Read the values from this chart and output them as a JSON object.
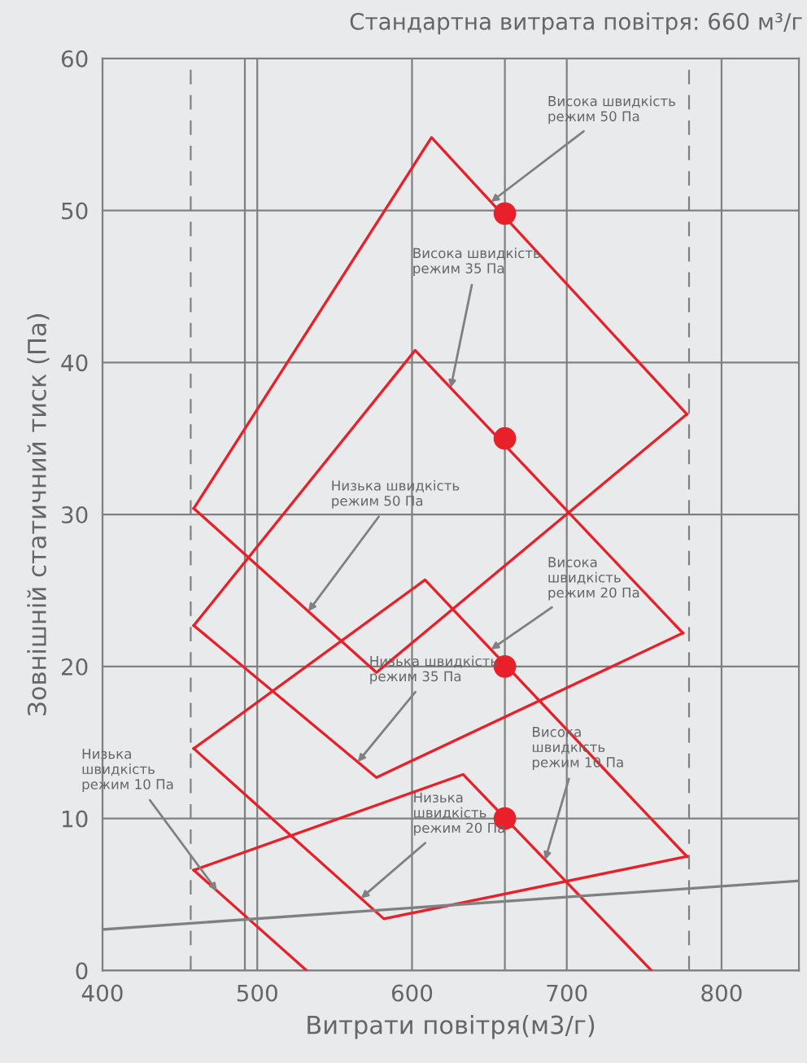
{
  "chart_data": {
    "type": "line",
    "title": "Стандартна витрата повітря: 660 м³/г",
    "xlabel": "Витрати повітря(м3/г)",
    "ylabel": "Зовнішній статичний тиск (Па)",
    "xlim": [
      400,
      850
    ],
    "ylim": [
      0,
      60
    ],
    "xticks": [
      400,
      500,
      600,
      700,
      800
    ],
    "yticks": [
      0,
      10,
      20,
      30,
      40,
      50,
      60
    ],
    "grid": true,
    "legend": false,
    "marker": "none",
    "line_style": "solid",
    "series": [
      {
        "color": "#e8202a",
        "x": [
          459,
          612.6,
          777.6
        ],
        "values": [
          30.4,
          54.8,
          36.6
        ]
      },
      {
        "color": "#e8202a",
        "x": [
          459,
          577,
          777.6
        ],
        "values": [
          30.4,
          19.6,
          36.6
        ]
      },
      {
        "color": "#e8202a",
        "x": [
          459,
          602,
          775
        ],
        "values": [
          22.7,
          40.8,
          22.2
        ]
      },
      {
        "color": "#e8202a",
        "x": [
          459,
          577,
          775
        ],
        "values": [
          22.7,
          12.7,
          22.2
        ]
      },
      {
        "color": "#e8202a",
        "x": [
          459,
          608.4,
          777.6
        ],
        "values": [
          14.6,
          25.7,
          7.5
        ]
      },
      {
        "color": "#e8202a",
        "x": [
          459,
          581.8,
          777.6
        ],
        "values": [
          14.6,
          3.4,
          7.5
        ]
      },
      {
        "color": "#e8202a",
        "x": [
          459,
          531.9
        ],
        "values": [
          6.6,
          0
        ]
      },
      {
        "color": "#e8202a",
        "x": [
          459,
          633,
          754.7
        ],
        "values": [
          6.6,
          12.9,
          0
        ]
      },
      {
        "color": "#808080",
        "x": [
          400,
          850
        ],
        "values": [
          2.7,
          5.9
        ]
      },
      {
        "type": "scatter",
        "color": "#e8202a",
        "marker": "circle",
        "x": [
          660,
          660,
          660,
          660
        ],
        "values": [
          49.8,
          35,
          20,
          10
        ]
      }
    ],
    "ref_lines": [
      {
        "axis": "x",
        "value": 457,
        "line_style": "dashed",
        "color": "#808080"
      },
      {
        "axis": "x",
        "value": 492,
        "line_style": "solid",
        "color": "#808080"
      },
      {
        "axis": "x",
        "value": 660,
        "line_style": "solid",
        "color": "#808080"
      },
      {
        "axis": "x",
        "value": 779,
        "line_style": "dashed",
        "color": "#808080"
      }
    ],
    "annotations": [
      {
        "text": "Висока швидкість\nрежим 50 Па",
        "x": 651,
        "y": 50.56
      },
      {
        "text": "Висока швидкість\nрежим 35 Па",
        "x": 625,
        "y": 38.33
      },
      {
        "text": "Низька швидкість\nрежим 50 Па",
        "x": 533,
        "y": 23.63
      },
      {
        "text": "Висока\nшвидкість\nрежим 20 Па",
        "x": 651,
        "y": 21.12
      },
      {
        "text": "Низька швидкість\nрежим 35 Па",
        "x": 565,
        "y": 13.72
      },
      {
        "text": "Висока\nшвидкість\nрежим 10 Па",
        "x": 686,
        "y": 7.28
      },
      {
        "text": "Низька\nшвидкість\nрежим 20 Па",
        "x": 567,
        "y": 4.75
      },
      {
        "text": "Низька\nшвидкість\nрежим 10 Па",
        "x": 474,
        "y": 5.24
      }
    ]
  }
}
